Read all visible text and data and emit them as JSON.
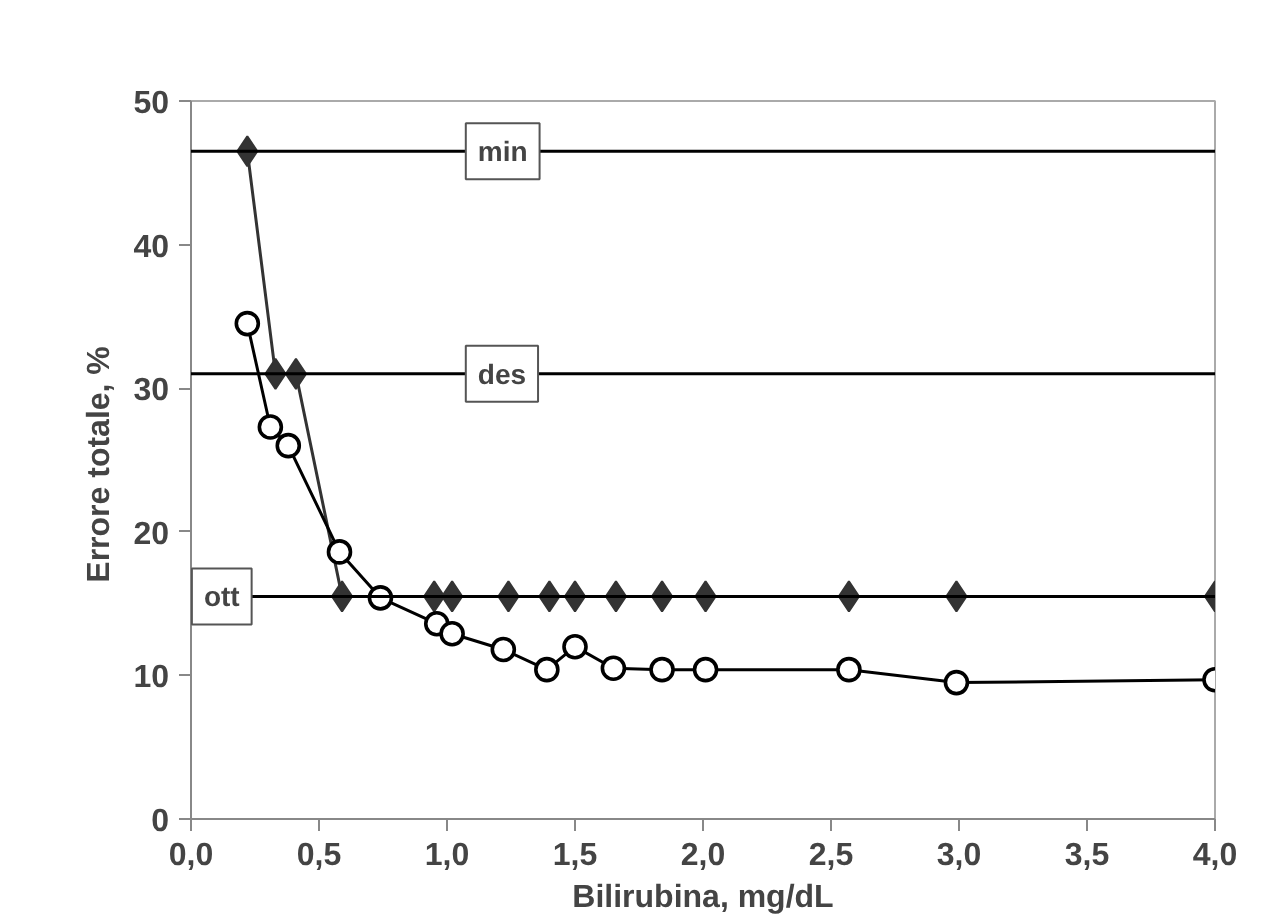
{
  "chart_data": {
    "type": "line",
    "xlabel": "Bilirubina, mg/dL",
    "ylabel": "Errore  totale, %",
    "xlim": [
      0,
      4
    ],
    "ylim": [
      0,
      50
    ],
    "xticks": [
      {
        "value": 0,
        "label": "0,0"
      },
      {
        "value": 0.5,
        "label": "0,5"
      },
      {
        "value": 1,
        "label": "1,0"
      },
      {
        "value": 1.5,
        "label": "1,5"
      },
      {
        "value": 2,
        "label": "2,0"
      },
      {
        "value": 2.5,
        "label": "2,5"
      },
      {
        "value": 3,
        "label": "3,0"
      },
      {
        "value": 3.5,
        "label": "3,5"
      },
      {
        "value": 4,
        "label": "4,0"
      }
    ],
    "yticks": [
      0,
      10,
      20,
      30,
      40,
      50
    ],
    "grid": false,
    "line_style": "solid",
    "series": [
      {
        "color": "#333333",
        "marker": "diamond",
        "x": [
          0.22,
          0.33,
          0.41,
          0.59,
          0.95,
          1.02,
          1.24,
          1.4,
          1.5,
          1.66,
          1.84,
          2.01,
          2.57,
          2.99,
          4.0
        ],
        "values": [
          46.5,
          31,
          31,
          15.5,
          15.5,
          15.5,
          15.5,
          15.5,
          15.5,
          15.5,
          15.5,
          15.5,
          15.5,
          15.5,
          15.5
        ]
      },
      {
        "color": "#000000",
        "marker": "circle",
        "x": [
          0.22,
          0.31,
          0.38,
          0.58,
          0.74,
          0.96,
          1.02,
          1.22,
          1.39,
          1.5,
          1.65,
          1.84,
          2.01,
          2.57,
          2.99,
          4.0
        ],
        "values": [
          34.5,
          27.3,
          26,
          18.6,
          15.4,
          13.6,
          12.9,
          11.8,
          10.4,
          12,
          10.5,
          10.4,
          10.4,
          10.4,
          9.5,
          9.7
        ]
      }
    ],
    "ref_lines": [
      {
        "axis": "y",
        "value": 46.5,
        "label": "min",
        "color": "#000000"
      },
      {
        "axis": "y",
        "value": 31,
        "label": "des",
        "color": "#000000"
      },
      {
        "axis": "y",
        "value": 15.5,
        "label": "ott",
        "color": "#000000"
      }
    ]
  }
}
